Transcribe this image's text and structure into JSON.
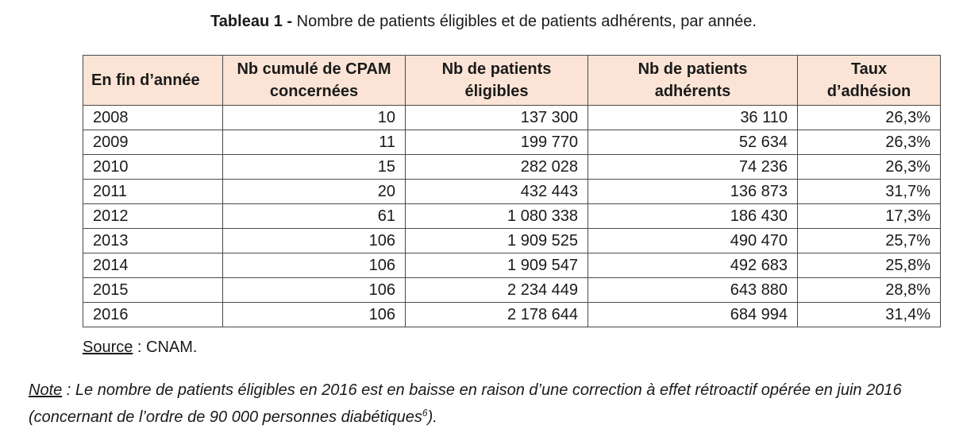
{
  "caption": {
    "bold": "Tableau 1 -",
    "text": "Nombre de patients éligibles et de patients adhérents, par année."
  },
  "table": {
    "headers": [
      "En fin d’année",
      "Nb cumulé de CPAM concernées",
      "Nb de patients éligibles",
      "Nb de patients adhérents",
      "Taux d’adhésion"
    ],
    "rows": [
      [
        "2008",
        "10",
        "137 300",
        "36 110",
        "26,3%"
      ],
      [
        "2009",
        "11",
        "199 770",
        "52 634",
        "26,3%"
      ],
      [
        "2010",
        "15",
        "282 028",
        "74 236",
        "26,3%"
      ],
      [
        "2011",
        "20",
        "432 443",
        "136 873",
        "31,7%"
      ],
      [
        "2012",
        "61",
        "1 080 338",
        "186 430",
        "17,3%"
      ],
      [
        "2013",
        "106",
        "1 909 525",
        "490 470",
        "25,7%"
      ],
      [
        "2014",
        "106",
        "1 909 547",
        "492 683",
        "25,8%"
      ],
      [
        "2015",
        "106",
        "2 234 449",
        "643 880",
        "28,8%"
      ],
      [
        "2016",
        "106",
        "2 178 644",
        "684 994",
        "31,4%"
      ]
    ],
    "header_bg": "#fbe4d5"
  },
  "source": {
    "label": "Source",
    "text": " : CNAM."
  },
  "note": {
    "label": "Note",
    "text": " : Le nombre de patients éligibles en 2016 est en baisse en raison d’une correction à effet rétroactif opérée en juin 2016 (concernant de l’ordre de 90 000 personnes diabétiques",
    "footnote": "6",
    "end": ")."
  }
}
